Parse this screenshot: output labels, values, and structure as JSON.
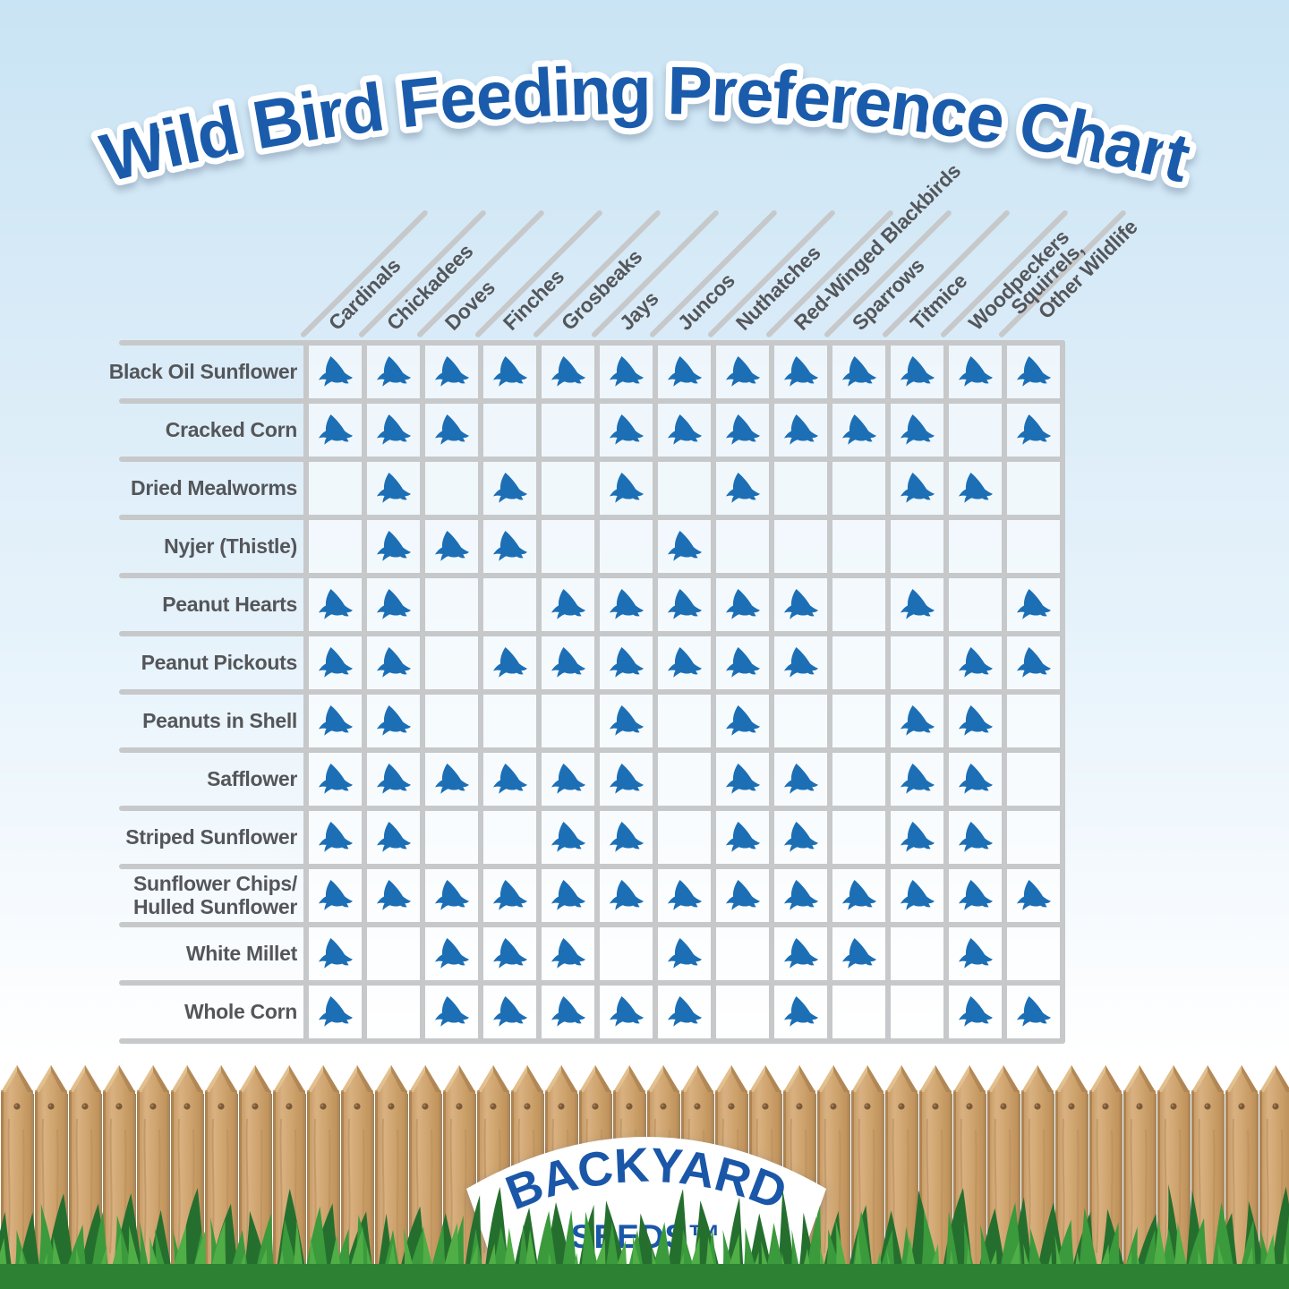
{
  "chart_data": {
    "type": "table",
    "title": "Wild Bird Feeding Preference Chart",
    "marker_icon": "blue-bird-icon",
    "legend_position": "none",
    "columns": [
      "Cardinals",
      "Chickadees",
      "Doves",
      "Finches",
      "Grosbeaks",
      "Jays",
      "Juncos",
      "Nuthatches",
      "Red-Winged Blackbirds",
      "Sparrows",
      "Titmice",
      "Woodpeckers",
      "Squirrels,\nOther Wildlife"
    ],
    "rows": [
      {
        "label": "Black Oil Sunflower",
        "values": [
          1,
          1,
          1,
          1,
          1,
          1,
          1,
          1,
          1,
          1,
          1,
          1,
          1
        ]
      },
      {
        "label": "Cracked Corn",
        "values": [
          1,
          1,
          1,
          0,
          0,
          1,
          1,
          1,
          1,
          1,
          1,
          0,
          1
        ]
      },
      {
        "label": "Dried Mealworms",
        "values": [
          0,
          1,
          0,
          1,
          0,
          1,
          0,
          1,
          0,
          0,
          1,
          1,
          0
        ]
      },
      {
        "label": "Nyjer (Thistle)",
        "values": [
          0,
          1,
          1,
          1,
          0,
          0,
          1,
          0,
          0,
          0,
          0,
          0,
          0
        ]
      },
      {
        "label": "Peanut Hearts",
        "values": [
          1,
          1,
          0,
          0,
          1,
          1,
          1,
          1,
          1,
          0,
          1,
          0,
          1
        ]
      },
      {
        "label": "Peanut Pickouts",
        "values": [
          1,
          1,
          0,
          1,
          1,
          1,
          1,
          1,
          1,
          0,
          0,
          1,
          1
        ]
      },
      {
        "label": "Peanuts in Shell",
        "values": [
          1,
          1,
          0,
          0,
          0,
          1,
          0,
          1,
          0,
          0,
          1,
          1,
          0
        ]
      },
      {
        "label": "Safflower",
        "values": [
          1,
          1,
          1,
          1,
          1,
          1,
          0,
          1,
          1,
          0,
          1,
          1,
          0
        ]
      },
      {
        "label": "Striped Sunflower",
        "values": [
          1,
          1,
          0,
          0,
          1,
          1,
          0,
          1,
          1,
          0,
          1,
          1,
          0
        ]
      },
      {
        "label": "Sunflower Chips/\nHulled Sunflower",
        "values": [
          1,
          1,
          1,
          1,
          1,
          1,
          1,
          1,
          1,
          1,
          1,
          1,
          1
        ]
      },
      {
        "label": "White Millet",
        "values": [
          1,
          0,
          1,
          1,
          1,
          0,
          1,
          0,
          1,
          1,
          0,
          1,
          0
        ]
      },
      {
        "label": "Whole Corn",
        "values": [
          1,
          0,
          1,
          1,
          1,
          1,
          1,
          0,
          1,
          0,
          0,
          1,
          1
        ]
      }
    ]
  },
  "logo": {
    "line1": "BACKYARD",
    "line2": "SEEDS™"
  },
  "colors": {
    "title_blue": "#1a5cab",
    "bird_blue": "#1c6fb5",
    "label_gray": "#54565a",
    "grid_gray": "#c6c8ca",
    "wood_tan": "#cda26c",
    "grass_green": "#3a9a3c"
  }
}
